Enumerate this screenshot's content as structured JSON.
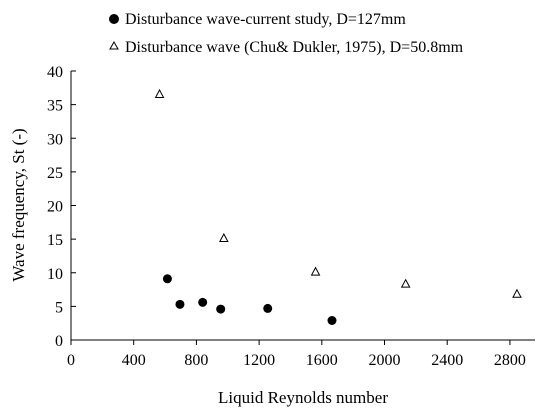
{
  "chart_data": {
    "type": "scatter",
    "title": "",
    "xlabel": "Liquid Reynolds number",
    "ylabel": "Wave frequency, St (-)",
    "xlim": [
      0,
      2960
    ],
    "ylim": [
      0,
      40
    ],
    "x_ticks": [
      0,
      400,
      800,
      1200,
      1600,
      2000,
      2400,
      2800
    ],
    "y_ticks": [
      0,
      5,
      10,
      15,
      20,
      25,
      30,
      35,
      40
    ],
    "x_tick_labels": [
      "0",
      "400",
      "800",
      "1200",
      "1600",
      "2000",
      "2400",
      "2800"
    ],
    "y_tick_labels": [
      "0",
      "5",
      "10",
      "15",
      "20",
      "25",
      "30",
      "35",
      "40"
    ],
    "grid": false,
    "legend_position": "top",
    "series": [
      {
        "name": "Disturbance wave-current study, D=127mm",
        "marker": "filled-circle",
        "color": "#000000",
        "x": [
          615,
          695,
          840,
          955,
          1255,
          1665
        ],
        "y": [
          9.1,
          5.3,
          5.6,
          4.6,
          4.7,
          2.9
        ]
      },
      {
        "name": "Disturbance wave (Chu& Dukler, 1975), D=50.8mm",
        "marker": "open-triangle",
        "color": "#000000",
        "x": [
          565,
          975,
          1560,
          2135,
          2845
        ],
        "y": [
          36.5,
          15.1,
          10.1,
          8.3,
          6.8
        ]
      }
    ]
  }
}
